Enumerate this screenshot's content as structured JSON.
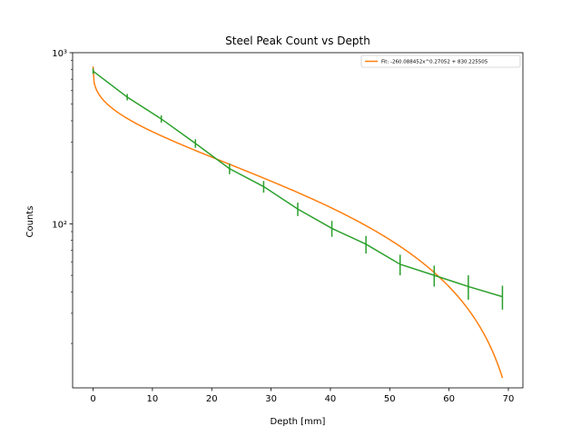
{
  "chart_data": {
    "type": "line",
    "title": "Steel Peak Count vs Depth",
    "xlabel": "Depth [mm]",
    "ylabel": "Counts",
    "xlim": [
      -3.45,
      72.45
    ],
    "ylim": [
      11,
      1000
    ],
    "yscale": "log",
    "grid": false,
    "legend_position": "top-right",
    "x_ticks": [
      0,
      10,
      20,
      30,
      40,
      50,
      60,
      70
    ],
    "x_tick_labels": [
      "0",
      "10",
      "20",
      "30",
      "40",
      "50",
      "60",
      "70"
    ],
    "y_major_ticks": [
      100,
      1000
    ],
    "y_tick_labels": [
      "10²",
      "10³"
    ],
    "series": [
      {
        "name": "Fit: -260.088452x^0.27052 + 830.225505",
        "kind": "fit",
        "color": "#ff7f0e",
        "formula": {
          "a": -260.088452,
          "b": 0.27052,
          "c": 830.225505
        },
        "x_range": [
          0,
          69
        ]
      },
      {
        "kind": "data_with_errorbars",
        "color": "#2ca02c",
        "x": [
          0,
          5.75,
          11.5,
          17.25,
          23,
          28.75,
          34.5,
          40.25,
          46,
          51.75,
          57.5,
          63.25,
          69
        ],
        "values": [
          780,
          550,
          410,
          295,
          210,
          165,
          122,
          94,
          76,
          58,
          50,
          43,
          37.5
        ],
        "errors": [
          28,
          24,
          20,
          17,
          15,
          13,
          11,
          10,
          9,
          8,
          7,
          7,
          6
        ]
      }
    ]
  },
  "colors": {
    "fit": "#ff7f0e",
    "data": "#2ca02c"
  }
}
